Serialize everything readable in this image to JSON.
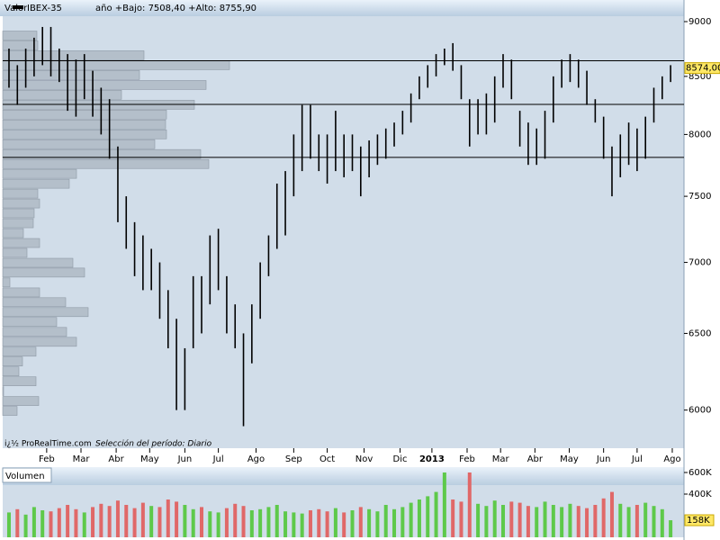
{
  "chart_data": [
    {
      "type": "range_bar",
      "header": {
        "label": "Valor",
        "symbol": "IBEX-35",
        "stats": "año +Bajo: 7508,40 +Alto: 8755,90"
      },
      "footer": {
        "source": "i¿½ ProRealTime.com",
        "period": "Selección del período: Diario"
      },
      "xlim": [
        -0.75,
        80.6
      ],
      "xticks": [
        {
          "value": 4.5,
          "label": "Feb"
        },
        {
          "value": 8.6,
          "label": "Mar"
        },
        {
          "value": 12.8,
          "label": "Abr"
        },
        {
          "value": 16.8,
          "label": "May"
        },
        {
          "value": 21,
          "label": "Jun"
        },
        {
          "value": 25,
          "label": "Jul"
        },
        {
          "value": 29.5,
          "label": "Ago"
        },
        {
          "value": 34,
          "label": "Sep"
        },
        {
          "value": 38,
          "label": "Oct"
        },
        {
          "value": 42.4,
          "label": "Nov"
        },
        {
          "value": 46.7,
          "label": "Dic"
        },
        {
          "value": 50.5,
          "label": "2013"
        },
        {
          "value": 54.7,
          "label": "Feb"
        },
        {
          "value": 58.7,
          "label": "Mar"
        },
        {
          "value": 62.8,
          "label": "Abr"
        },
        {
          "value": 66.9,
          "label": "May"
        },
        {
          "value": 71,
          "label": "Jun"
        },
        {
          "value": 75,
          "label": "Jul"
        },
        {
          "value": 79.2,
          "label": "Ago"
        }
      ],
      "bold_xtick": "2013",
      "ylim": [
        5766,
        9051
      ],
      "log_y": true,
      "yticks": [
        9000,
        8500,
        8000,
        7500,
        7000,
        6500,
        6000
      ],
      "low": [
        8400,
        8250,
        8400,
        8500,
        8600,
        8500,
        8450,
        8200,
        8150,
        8300,
        8150,
        8000,
        7800,
        7300,
        7100,
        6900,
        6800,
        6800,
        6600,
        6400,
        6000,
        6000,
        6400,
        6500,
        6700,
        6800,
        6500,
        6400,
        5900,
        6300,
        6600,
        6900,
        7100,
        7200,
        7500,
        7700,
        7800,
        7700,
        7600,
        7700,
        7650,
        7700,
        7500,
        7650,
        7750,
        7800,
        7900,
        8000,
        8100,
        8300,
        8400,
        8500,
        8600,
        8550,
        8300,
        7900,
        8000,
        8000,
        8100,
        8400,
        8300,
        7900,
        7750,
        7750,
        7800,
        8100,
        8400,
        8450,
        8400,
        8250,
        8100,
        7800,
        7500,
        7650,
        7750,
        7700,
        7800,
        8100,
        8300,
        8450
      ],
      "high": [
        8750,
        8600,
        8750,
        8850,
        8950,
        8950,
        8750,
        8700,
        8650,
        8700,
        8550,
        8400,
        8300,
        7900,
        7500,
        7300,
        7200,
        7100,
        7000,
        6800,
        6600,
        6400,
        6900,
        6900,
        7200,
        7250,
        6900,
        6700,
        6500,
        6700,
        7000,
        7200,
        7600,
        7700,
        8000,
        8250,
        8250,
        8000,
        8000,
        8200,
        8000,
        8000,
        7900,
        7950,
        8000,
        8050,
        8100,
        8200,
        8350,
        8500,
        8600,
        8700,
        8750,
        8800,
        8600,
        8300,
        8300,
        8350,
        8500,
        8700,
        8650,
        8200,
        8100,
        8050,
        8200,
        8500,
        8650,
        8700,
        8650,
        8550,
        8300,
        8150,
        7900,
        8000,
        8100,
        8050,
        8150,
        8400,
        8500,
        8600
      ],
      "color": "#000000",
      "levels": [
        8640,
        8255,
        7811
      ],
      "last": {
        "value": 8574,
        "label": "8574,00"
      },
      "volume_profile": {
        "prices": [
          8870,
          8779,
          8689,
          8600,
          8512,
          8424,
          8338,
          8252,
          8168,
          8084,
          8001,
          7919,
          7838,
          7757,
          7678,
          7599,
          7521,
          7444,
          7368,
          7292,
          7217,
          7143,
          7070,
          6997,
          6926,
          6855,
          6784,
          6715,
          6646,
          6578,
          6510,
          6443,
          6377,
          6312,
          6247,
          6183,
          6120,
          6057,
          5995
        ],
        "values": [
          38,
          39,
          157,
          252,
          152,
          226,
          132,
          213,
          182,
          181,
          182,
          169,
          220,
          229,
          82,
          74,
          39,
          41,
          35,
          34,
          23,
          41,
          27,
          78,
          91,
          8,
          41,
          70,
          95,
          60,
          71,
          82,
          37,
          22,
          18,
          37,
          1,
          40,
          16
        ],
        "color": "#b4bfca"
      }
    },
    {
      "type": "bar",
      "title": "Volumen",
      "xlim": [
        -0.75,
        80.6
      ],
      "ylim": [
        0,
        650000
      ],
      "yticks": [
        {
          "value": 600000,
          "label": "600K"
        },
        {
          "value": 400000,
          "label": "400K"
        }
      ],
      "values": [
        230000,
        260000,
        210000,
        280000,
        250000,
        240000,
        270000,
        300000,
        260000,
        230000,
        280000,
        310000,
        290000,
        340000,
        300000,
        270000,
        320000,
        290000,
        280000,
        350000,
        330000,
        300000,
        260000,
        280000,
        240000,
        230000,
        270000,
        310000,
        290000,
        250000,
        260000,
        280000,
        300000,
        240000,
        230000,
        220000,
        250000,
        260000,
        240000,
        270000,
        230000,
        250000,
        280000,
        260000,
        240000,
        300000,
        260000,
        280000,
        320000,
        350000,
        380000,
        420000,
        600000,
        350000,
        330000,
        600000,
        310000,
        290000,
        340000,
        300000,
        330000,
        320000,
        290000,
        280000,
        330000,
        300000,
        280000,
        310000,
        290000,
        270000,
        300000,
        360000,
        420000,
        310000,
        280000,
        300000,
        320000,
        290000,
        260000,
        158000
      ],
      "up": [
        true,
        false,
        true,
        true,
        true,
        false,
        false,
        false,
        false,
        true,
        false,
        false,
        false,
        false,
        false,
        false,
        false,
        true,
        false,
        false,
        false,
        true,
        true,
        false,
        true,
        true,
        false,
        false,
        false,
        true,
        true,
        true,
        true,
        true,
        true,
        true,
        false,
        false,
        false,
        true,
        false,
        true,
        false,
        true,
        true,
        true,
        true,
        true,
        true,
        true,
        true,
        true,
        true,
        false,
        false,
        false,
        true,
        true,
        true,
        true,
        false,
        false,
        false,
        true,
        true,
        true,
        true,
        true,
        false,
        false,
        false,
        false,
        false,
        true,
        true,
        false,
        true,
        true,
        true,
        true
      ],
      "up_color": "#5ec94a",
      "down_color": "#e06868",
      "last": {
        "value": 158000,
        "label": "158K"
      }
    }
  ]
}
